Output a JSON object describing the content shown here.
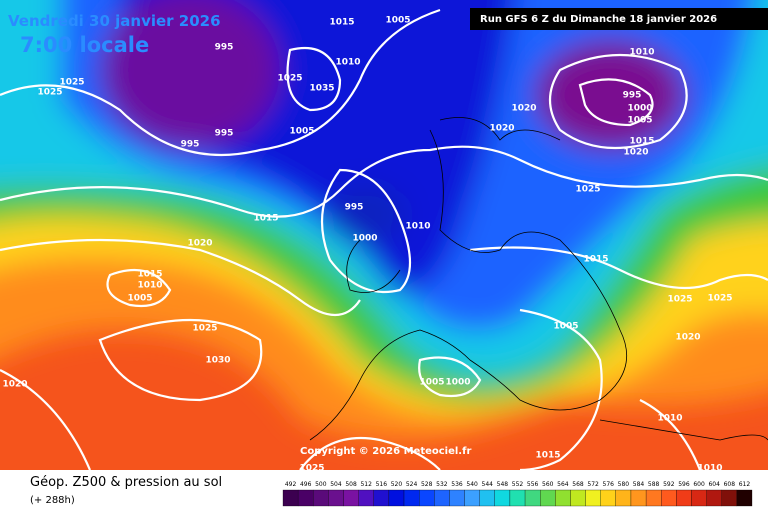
{
  "header": {
    "date": "Vendredi 30 janvier 2026",
    "time": "7:00 locale",
    "run": "Run GFS 6 Z du Dimanche 18 janvier 2026"
  },
  "map": {
    "copyright": "Copyright © 2026 Meteociel.fr",
    "isobar_labels": [
      "1015",
      "1005",
      "995",
      "1010",
      "1025",
      "1025",
      "1025",
      "1035",
      "995",
      "995",
      "1005",
      "1020",
      "1020",
      "1010",
      "995",
      "1000",
      "1005",
      "1015",
      "1020",
      "1025",
      "995",
      "1010",
      "1000",
      "1015",
      "1020",
      "1015",
      "1010",
      "1005",
      "1015",
      "1025",
      "1025",
      "1020",
      "1005",
      "1025",
      "1030",
      "1005",
      "1000",
      "1020",
      "1010",
      "1015",
      "1025",
      "1010"
    ]
  },
  "footer": {
    "title": "Géop. Z500 & pression au sol",
    "subtitle": "(+ 288h)"
  },
  "colorbar": {
    "labels": [
      492,
      496,
      500,
      504,
      508,
      512,
      516,
      520,
      524,
      528,
      532,
      536,
      540,
      544,
      548,
      552,
      556,
      560,
      564,
      568,
      572,
      576,
      580,
      584,
      588,
      592,
      596,
      600,
      604,
      608,
      612
    ]
  }
}
